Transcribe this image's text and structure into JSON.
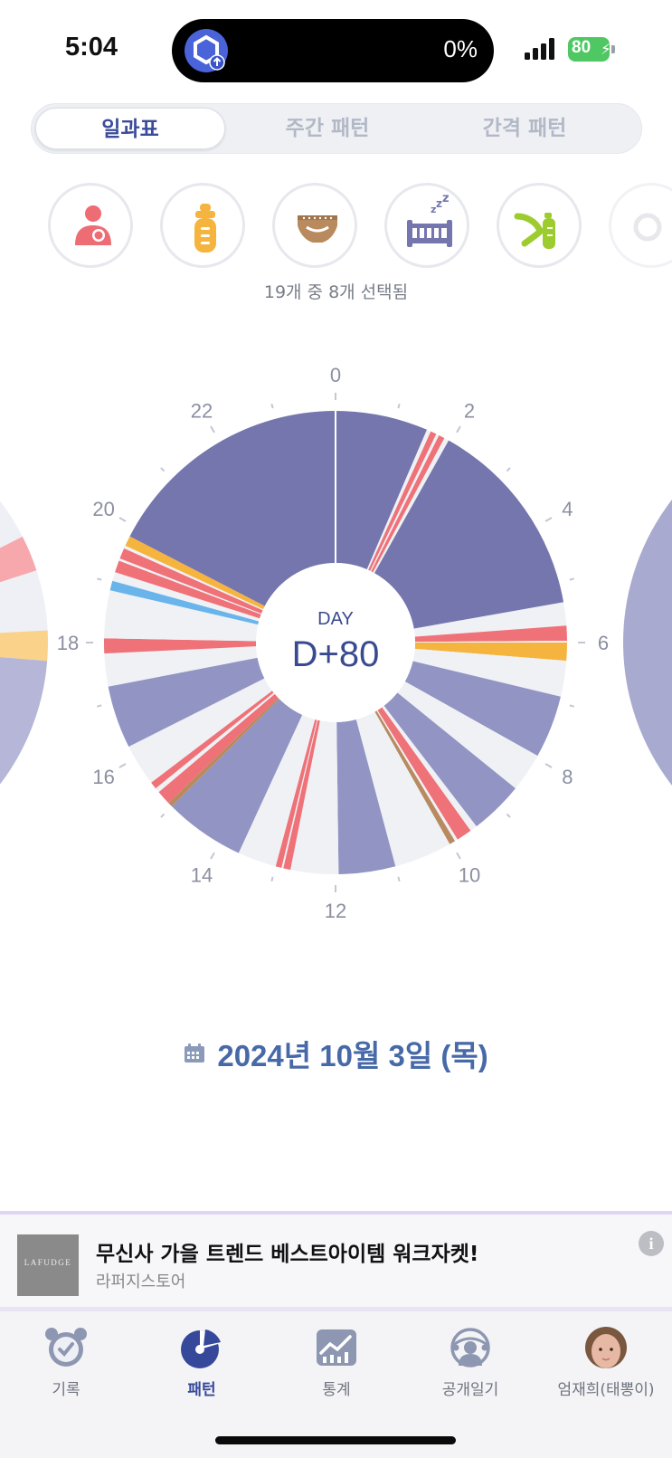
{
  "status_bar": {
    "time": "5:04",
    "island_percent": "0%",
    "battery": "80",
    "app_icon": "app-upload-icon",
    "signal_icon": "cellular-signal-icon"
  },
  "tabs": {
    "items": [
      {
        "label": "일과표",
        "active": true
      },
      {
        "label": "주간 패턴",
        "active": false
      },
      {
        "label": "간격 패턴",
        "active": false
      }
    ]
  },
  "categories": {
    "icons": [
      "breastfeeding-icon",
      "bottle-icon",
      "diaper-icon",
      "sleep-crib-icon",
      "pump-icon",
      "more-category-icon"
    ],
    "count_text": "19개 중 8개 선택됨"
  },
  "chart_center": {
    "day_label": "DAY",
    "day_value": "D+80"
  },
  "chart_data": {
    "type": "pie",
    "title": "",
    "axis": {
      "unit": "hour",
      "range": [
        0,
        24
      ],
      "tick_labels": [
        "0",
        "2",
        "4",
        "6",
        "8",
        "10",
        "12",
        "14",
        "16",
        "18",
        "20",
        "22"
      ]
    },
    "colors": {
      "sleep": "#7476ad",
      "sleep_light": "#9294c4",
      "empty": "#eff1f5",
      "breastfeed": "#ee7278",
      "bottle": "#f5b43e",
      "diaper": "#b88a60",
      "pump": "#69b4ea"
    },
    "segments": [
      {
        "start": 0.0,
        "end": 1.55,
        "type": "sleep"
      },
      {
        "start": 1.55,
        "end": 1.62,
        "type": "empty"
      },
      {
        "start": 1.62,
        "end": 1.72,
        "type": "breastfeed"
      },
      {
        "start": 1.72,
        "end": 1.77,
        "type": "empty"
      },
      {
        "start": 1.77,
        "end": 1.87,
        "type": "breastfeed"
      },
      {
        "start": 1.87,
        "end": 1.95,
        "type": "empty"
      },
      {
        "start": 1.95,
        "end": 5.33,
        "type": "sleep"
      },
      {
        "start": 5.33,
        "end": 5.72,
        "type": "empty"
      },
      {
        "start": 5.72,
        "end": 5.97,
        "type": "breastfeed"
      },
      {
        "start": 5.97,
        "end": 6.0,
        "type": "empty"
      },
      {
        "start": 6.0,
        "end": 6.3,
        "type": "bottle"
      },
      {
        "start": 6.3,
        "end": 6.9,
        "type": "empty"
      },
      {
        "start": 6.9,
        "end": 7.95,
        "type": "sleep_light"
      },
      {
        "start": 7.95,
        "end": 8.6,
        "type": "empty"
      },
      {
        "start": 8.6,
        "end": 9.5,
        "type": "sleep_light"
      },
      {
        "start": 9.5,
        "end": 9.62,
        "type": "empty"
      },
      {
        "start": 9.62,
        "end": 9.88,
        "type": "breastfeed"
      },
      {
        "start": 9.88,
        "end": 9.93,
        "type": "empty"
      },
      {
        "start": 9.93,
        "end": 10.03,
        "type": "diaper"
      },
      {
        "start": 10.03,
        "end": 11.0,
        "type": "empty"
      },
      {
        "start": 11.0,
        "end": 11.95,
        "type": "sleep_light"
      },
      {
        "start": 11.95,
        "end": 12.75,
        "type": "empty"
      },
      {
        "start": 12.75,
        "end": 12.87,
        "type": "breastfeed"
      },
      {
        "start": 12.87,
        "end": 12.9,
        "type": "empty"
      },
      {
        "start": 12.9,
        "end": 13.0,
        "type": "breastfeed"
      },
      {
        "start": 13.0,
        "end": 13.65,
        "type": "empty"
      },
      {
        "start": 13.65,
        "end": 15.0,
        "type": "sleep_light"
      },
      {
        "start": 15.0,
        "end": 15.08,
        "type": "diaper"
      },
      {
        "start": 15.08,
        "end": 15.32,
        "type": "breastfeed"
      },
      {
        "start": 15.32,
        "end": 15.4,
        "type": "empty"
      },
      {
        "start": 15.4,
        "end": 15.52,
        "type": "breastfeed"
      },
      {
        "start": 15.52,
        "end": 16.22,
        "type": "empty"
      },
      {
        "start": 16.22,
        "end": 17.27,
        "type": "sleep_light"
      },
      {
        "start": 17.27,
        "end": 17.82,
        "type": "empty"
      },
      {
        "start": 17.82,
        "end": 18.07,
        "type": "breastfeed"
      },
      {
        "start": 18.07,
        "end": 18.87,
        "type": "empty"
      },
      {
        "start": 18.87,
        "end": 19.03,
        "type": "pump"
      },
      {
        "start": 19.03,
        "end": 19.18,
        "type": "empty"
      },
      {
        "start": 19.18,
        "end": 19.38,
        "type": "breastfeed"
      },
      {
        "start": 19.38,
        "end": 19.42,
        "type": "empty"
      },
      {
        "start": 19.42,
        "end": 19.6,
        "type": "breastfeed"
      },
      {
        "start": 19.6,
        "end": 19.65,
        "type": "empty"
      },
      {
        "start": 19.65,
        "end": 19.82,
        "type": "bottle"
      },
      {
        "start": 19.82,
        "end": 24.0,
        "type": "sleep"
      }
    ]
  },
  "date": {
    "text": "2024년 10월 3일 (목)",
    "icon": "calendar-icon"
  },
  "ad": {
    "thumb_text": "LAFUDGE",
    "title": "무신사 가을 트렌드 베스트아이템 워크자켓!",
    "subtitle": "라퍼지스토어",
    "info_icon": "info-icon",
    "info_label": "i"
  },
  "bottom_nav": {
    "items": [
      {
        "label": "기록",
        "icon": "alarm-clock-icon",
        "active": false
      },
      {
        "label": "패턴",
        "icon": "pattern-chart-icon",
        "active": true
      },
      {
        "label": "통계",
        "icon": "statistics-icon",
        "active": false
      },
      {
        "label": "공개일기",
        "icon": "public-diary-icon",
        "active": false
      },
      {
        "label": "엄재희(태뽕이)",
        "icon": "profile-avatar",
        "active": false
      }
    ]
  }
}
